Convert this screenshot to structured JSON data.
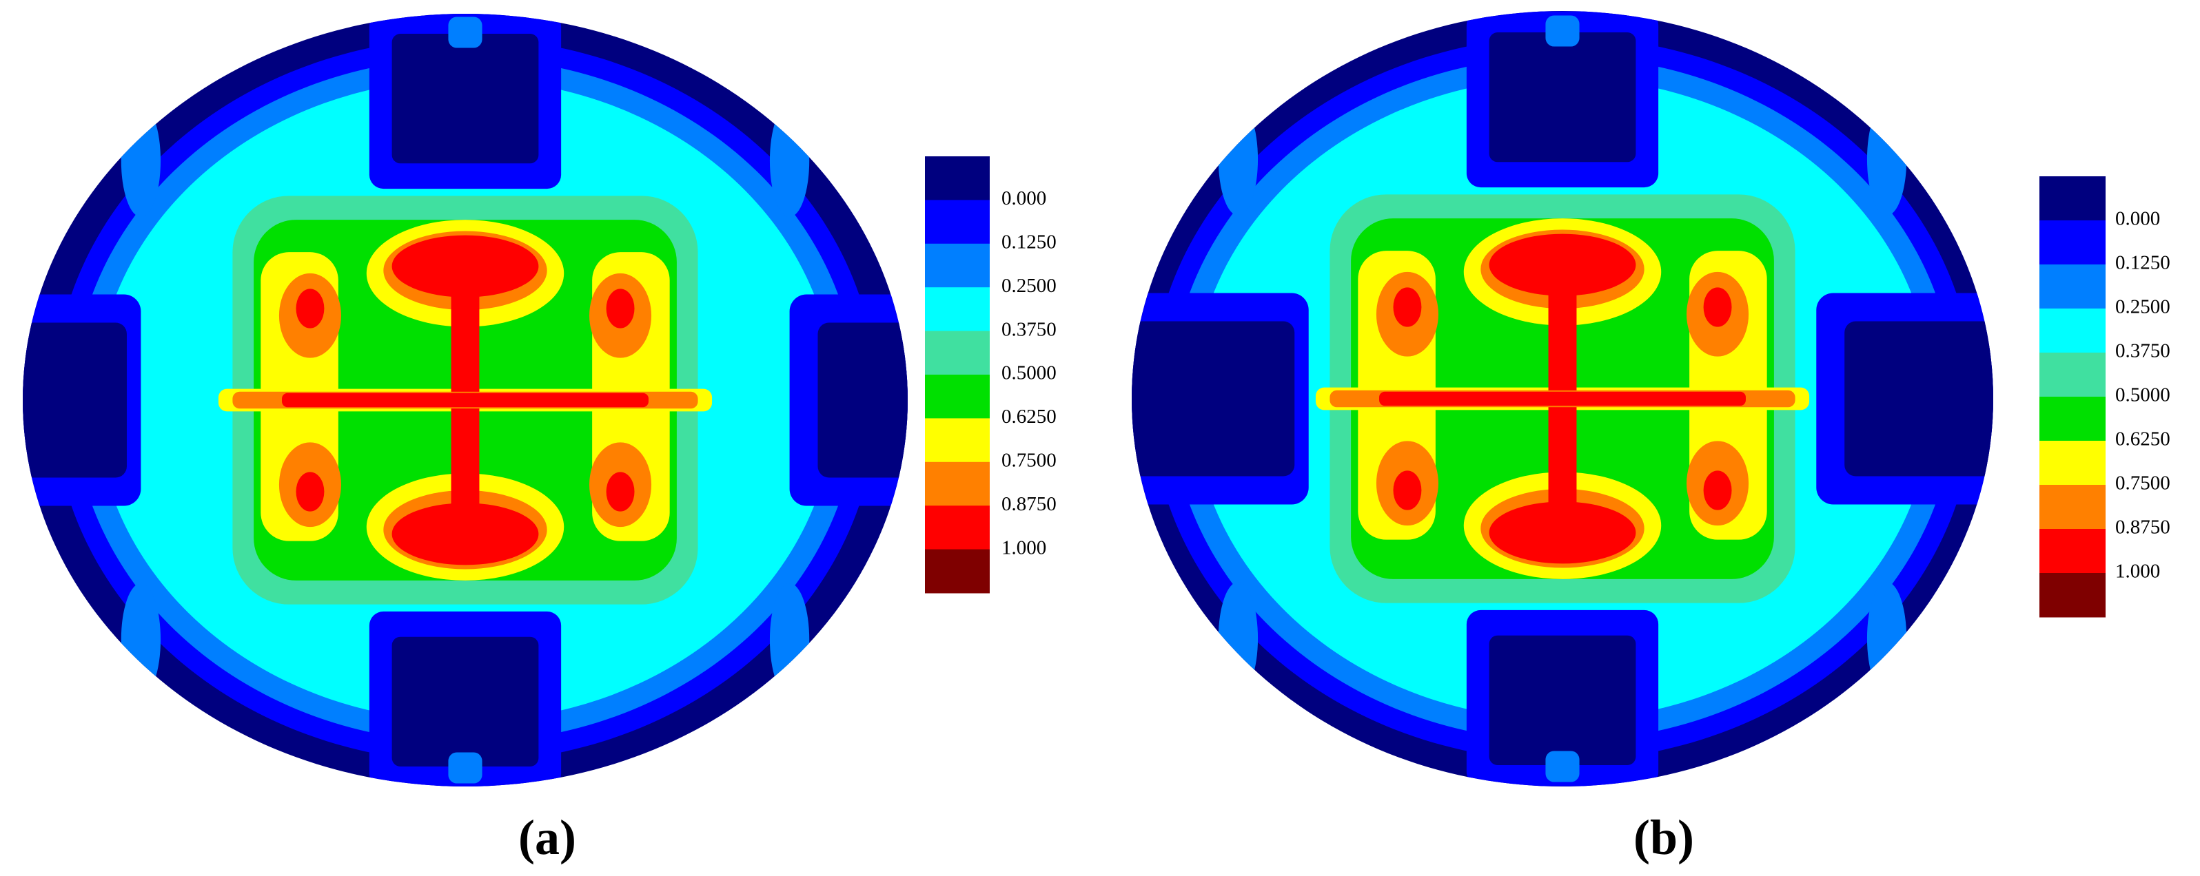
{
  "chart_data": [
    {
      "type": "contour",
      "caption": "(a)",
      "colors": [
        "#00007f",
        "#0000ff",
        "#007fff",
        "#00ffff",
        "#40e0a0",
        "#00e000",
        "#ffff00",
        "#ff8000",
        "#ff0000",
        "#7f0000"
      ],
      "clim": [
        -0.125,
        1.125
      ],
      "cticks": [
        {
          "value": 0,
          "label": "0.000"
        },
        {
          "value": 0.125,
          "label": "0.1250"
        },
        {
          "value": 0.25,
          "label": "0.2500"
        },
        {
          "value": 0.375,
          "label": "0.3750"
        },
        {
          "value": 0.5,
          "label": "0.5000"
        },
        {
          "value": 0.625,
          "label": "0.6250"
        },
        {
          "value": 0.75,
          "label": "0.7500"
        },
        {
          "value": 0.875,
          "label": "0.8750"
        },
        {
          "value": 1,
          "label": "1.000"
        }
      ]
    },
    {
      "type": "contour",
      "caption": "(b)",
      "colors": [
        "#00007f",
        "#0000ff",
        "#007fff",
        "#00ffff",
        "#40e0a0",
        "#00e000",
        "#ffff00",
        "#ff8000",
        "#ff0000",
        "#7f0000"
      ],
      "clim": [
        -0.125,
        1.125
      ],
      "cticks": [
        {
          "value": 0,
          "label": "0.000"
        },
        {
          "value": 0.125,
          "label": "0.1250"
        },
        {
          "value": 0.25,
          "label": "0.2500"
        },
        {
          "value": 0.375,
          "label": "0.3750"
        },
        {
          "value": 0.5,
          "label": "0.5000"
        },
        {
          "value": 0.625,
          "label": "0.6250"
        },
        {
          "value": 0.75,
          "label": "0.7500"
        },
        {
          "value": 0.875,
          "label": "0.8750"
        },
        {
          "value": 1,
          "label": "1.000"
        }
      ]
    }
  ]
}
